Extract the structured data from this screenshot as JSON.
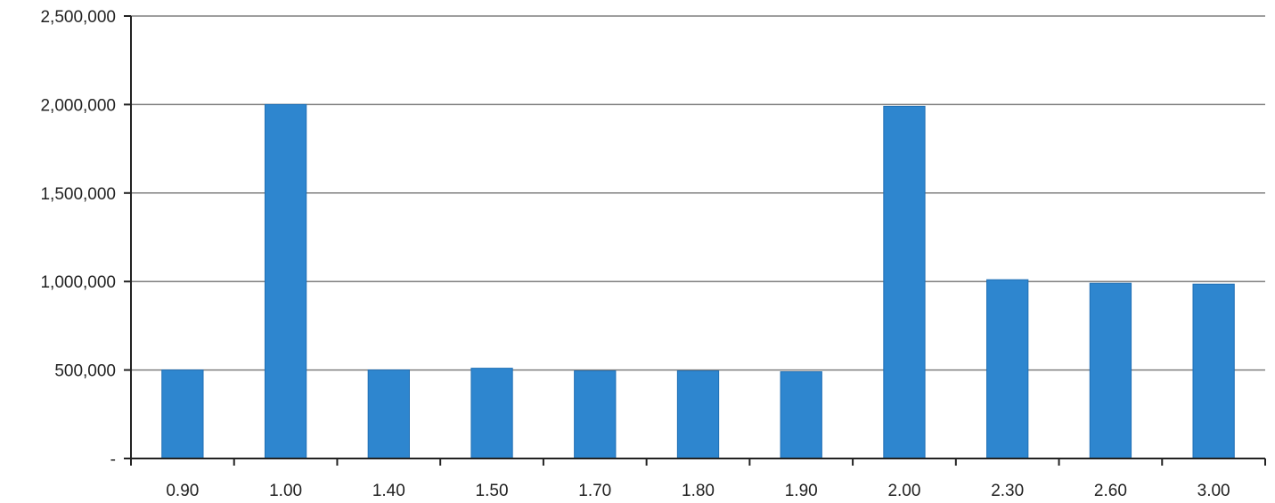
{
  "chart_data": {
    "type": "bar",
    "categories": [
      "0.90",
      "1.00",
      "1.40",
      "1.50",
      "1.70",
      "1.80",
      "1.90",
      "2.00",
      "2.30",
      "2.60",
      "3.00"
    ],
    "values": [
      500000,
      2000000,
      500000,
      510000,
      495000,
      495000,
      490000,
      1990000,
      1010000,
      990000,
      985000
    ],
    "yticks": [
      0,
      500000,
      1000000,
      1500000,
      2000000,
      2500000
    ],
    "ytick_labels": [
      "-",
      "500,000",
      "1,000,000",
      "1,500,000",
      "2,000,000",
      "2,500,000"
    ],
    "ylim": [
      0,
      2500000
    ],
    "title": "",
    "xlabel": "",
    "ylabel": "",
    "grid": true,
    "legend": "none",
    "colors": {
      "bar": "#2e86cf",
      "bar_edge": "#1f6fb5",
      "grid": "#7f7f7f",
      "axis": "#222222",
      "text": "#222222"
    }
  }
}
